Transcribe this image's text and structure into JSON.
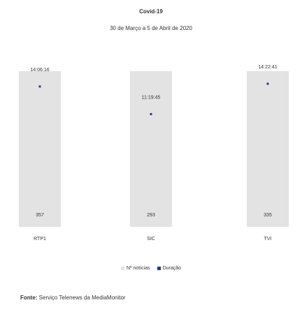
{
  "chart_data": {
    "type": "bar",
    "title": "Covid-19",
    "subtitle": "30 de Março a 5 de Abril de 2020",
    "categories": [
      "RTP1",
      "SIC",
      "TVI"
    ],
    "series": [
      {
        "name": "Nº notícias",
        "values": [
          357,
          293,
          335
        ],
        "color": "#e3e3e3"
      },
      {
        "name": "Duração",
        "values": [
          "14:06:16",
          "11:19:45",
          "14:22:41"
        ],
        "values_seconds": [
          50776,
          40785,
          51761
        ],
        "color": "#1f3c88"
      }
    ],
    "legend_position": "bottom",
    "grid": false
  },
  "source": {
    "label": "Fonte:",
    "text": "Serviço Telenews da MediaMonitor"
  }
}
